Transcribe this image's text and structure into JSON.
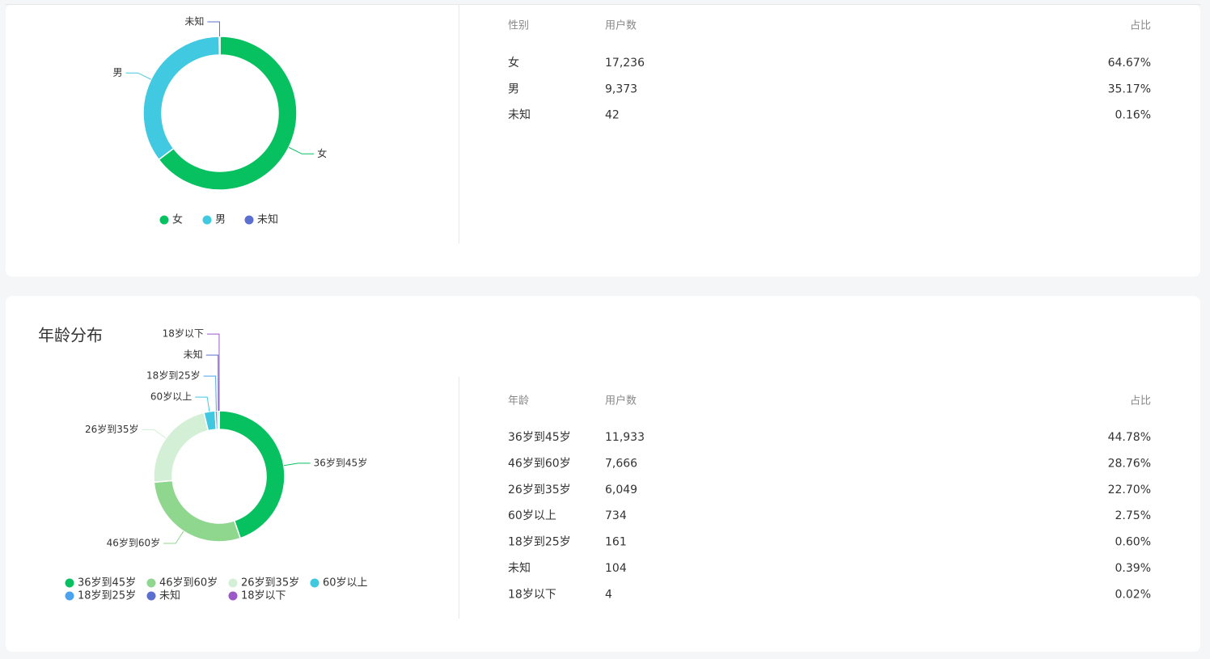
{
  "chart_data": [
    {
      "type": "pie",
      "donut": true,
      "categories": [
        "女",
        "男",
        "未知"
      ],
      "values": [
        17236,
        9373,
        42
      ],
      "colors": [
        "#07c160",
        "#40c9e0",
        "#5b6fd0"
      ],
      "legend": "bottom"
    },
    {
      "type": "pie",
      "donut": true,
      "title": "年龄分布",
      "categories": [
        "36岁到45岁",
        "46岁到60岁",
        "26岁到35岁",
        "60岁以上",
        "18岁到25岁",
        "未知",
        "18岁以下"
      ],
      "values": [
        11933,
        7666,
        6049,
        734,
        161,
        104,
        4
      ],
      "colors": [
        "#07c160",
        "#8fd68f",
        "#d3efd5",
        "#40c8e0",
        "#4ba3f0",
        "#5b6fd0",
        "#9b59c8"
      ],
      "legend": "bottom"
    }
  ],
  "tables": [
    {
      "headers": [
        "性别",
        "用户数",
        "占比"
      ],
      "rows": [
        [
          "女",
          "17,236",
          "64.67%"
        ],
        [
          "男",
          "9,373",
          "35.17%"
        ],
        [
          "未知",
          "42",
          "0.16%"
        ]
      ]
    },
    {
      "headers": [
        "年龄",
        "用户数",
        "占比"
      ],
      "rows": [
        [
          "36岁到45岁",
          "11,933",
          "44.78%"
        ],
        [
          "46岁到60岁",
          "7,666",
          "28.76%"
        ],
        [
          "26岁到35岁",
          "6,049",
          "22.70%"
        ],
        [
          "60岁以上",
          "734",
          "2.75%"
        ],
        [
          "18岁到25岁",
          "161",
          "0.60%"
        ],
        [
          "未知",
          "104",
          "0.39%"
        ],
        [
          "18岁以下",
          "4",
          "0.02%"
        ]
      ]
    }
  ]
}
